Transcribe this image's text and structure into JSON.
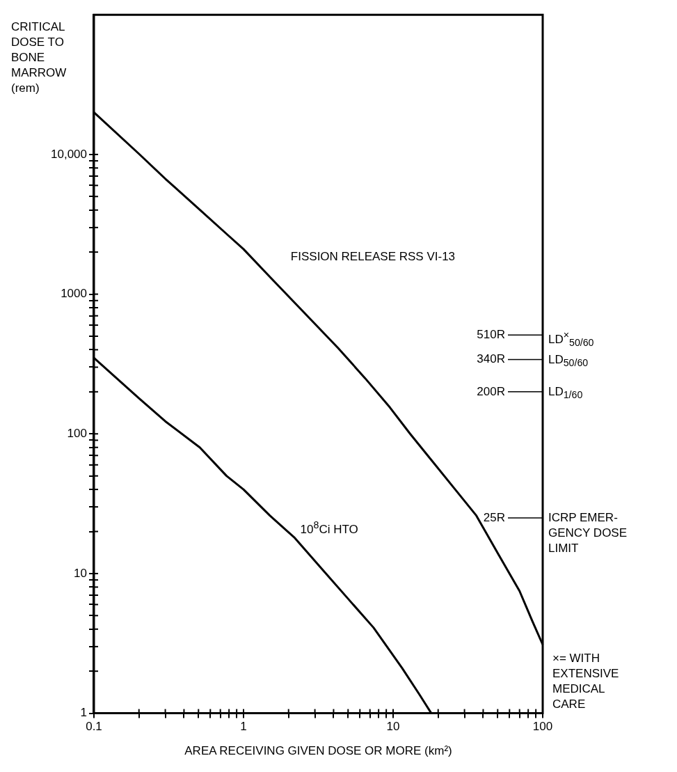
{
  "chart_data": {
    "type": "line",
    "xlabel": "AREA RECEIVING GIVEN DOSE OR MORE (km²)",
    "ylabel": "CRITICAL\nDOSE TO\nBONE\nMARROW\n(rem)",
    "log": "xy",
    "grid": false,
    "legend": false,
    "marker": "none",
    "line_style": "solid",
    "xlim": [
      0.1,
      100
    ],
    "ylim": [
      1,
      100000
    ],
    "xticks": [
      0.1,
      {
        "value": 0.2,
        "label": null
      },
      {
        "value": 0.3,
        "label": null
      },
      {
        "value": 0.4,
        "label": null
      },
      {
        "value": 0.5,
        "label": null
      },
      {
        "value": 0.6,
        "label": null
      },
      {
        "value": 0.7,
        "label": null
      },
      {
        "value": 0.8,
        "label": null
      },
      {
        "value": 0.9,
        "label": null
      },
      1,
      {
        "value": 2,
        "label": null
      },
      {
        "value": 3,
        "label": null
      },
      {
        "value": 4,
        "label": null
      },
      {
        "value": 5,
        "label": null
      },
      {
        "value": 6,
        "label": null
      },
      {
        "value": 7,
        "label": null
      },
      {
        "value": 8,
        "label": null
      },
      {
        "value": 9,
        "label": null
      },
      10,
      {
        "value": 20,
        "label": null
      },
      {
        "value": 30,
        "label": null
      },
      {
        "value": 40,
        "label": null
      },
      {
        "value": 50,
        "label": null
      },
      {
        "value": 60,
        "label": null
      },
      {
        "value": 70,
        "label": null
      },
      {
        "value": 80,
        "label": null
      },
      {
        "value": 90,
        "label": null
      },
      100
    ],
    "yticks": [
      1,
      {
        "value": 2,
        "label": null
      },
      {
        "value": 3,
        "label": null
      },
      {
        "value": 4,
        "label": null
      },
      {
        "value": 5,
        "label": null
      },
      {
        "value": 6,
        "label": null
      },
      {
        "value": 7,
        "label": null
      },
      {
        "value": 8,
        "label": null
      },
      {
        "value": 9,
        "label": null
      },
      10,
      {
        "value": 20,
        "label": null
      },
      {
        "value": 30,
        "label": null
      },
      {
        "value": 40,
        "label": null
      },
      {
        "value": 50,
        "label": null
      },
      {
        "value": 60,
        "label": null
      },
      {
        "value": 70,
        "label": null
      },
      {
        "value": 80,
        "label": null
      },
      {
        "value": 90,
        "label": null
      },
      100,
      {
        "value": 200,
        "label": null
      },
      {
        "value": 300,
        "label": null
      },
      {
        "value": 400,
        "label": null
      },
      {
        "value": 500,
        "label": null
      },
      {
        "value": 600,
        "label": null
      },
      {
        "value": 700,
        "label": null
      },
      {
        "value": 800,
        "label": null
      },
      {
        "value": 900,
        "label": null
      },
      1000,
      {
        "value": 2000,
        "label": null
      },
      {
        "value": 3000,
        "label": null
      },
      {
        "value": 4000,
        "label": null
      },
      {
        "value": 5000,
        "label": null
      },
      {
        "value": 6000,
        "label": null
      },
      {
        "value": 7000,
        "label": null
      },
      {
        "value": 8000,
        "label": null
      },
      {
        "value": 9000,
        "label": null
      },
      {
        "value": 10000,
        "label": "10,000"
      }
    ],
    "series": [
      {
        "name": "FISSION RELEASE RSS VI-13",
        "color": "#000000",
        "x": [
          0.1,
          0.2,
          0.3,
          0.5,
          0.77,
          1,
          1.5,
          2.6,
          4.3,
          6.5,
          9.5,
          13,
          18,
          26,
          36,
          50,
          70,
          85,
          100
        ],
        "values": [
          20000,
          10100,
          6700,
          4100,
          2700,
          2100,
          1330,
          720,
          410,
          250,
          155,
          100,
          65,
          40,
          26,
          14,
          7.5,
          4.6,
          3.1
        ]
      },
      {
        "name": "10$^{8}$Ci HTO",
        "color": "#000000",
        "x": [
          0.1,
          0.2,
          0.3,
          0.51,
          0.77,
          1,
          1.5,
          2.2,
          3.5,
          5,
          7.4,
          11.5,
          15,
          18
        ],
        "values": [
          350,
          180,
          123,
          80,
          50,
          40,
          26,
          18,
          10.2,
          6.6,
          4.1,
          2.1,
          1.36,
          1
        ]
      }
    ],
    "ref_lines": [
      {
        "axis": "y",
        "value": 510,
        "label": "510R"
      },
      {
        "axis": "y",
        "value": 340,
        "label": "340R"
      },
      {
        "axis": "y",
        "value": 200,
        "label": "200R"
      },
      {
        "axis": "y",
        "value": 25,
        "label": "25R"
      }
    ],
    "annotations": [
      "LD$^{×}$$_{50/60}$",
      "LD$_{50/60}$",
      "LD$_{1/60}$",
      "ICRP EMER-\nGENCY DOSE\nLIMIT",
      "×= WITH\nEXTENSIVE\nMEDICAL\nCARE"
    ]
  }
}
